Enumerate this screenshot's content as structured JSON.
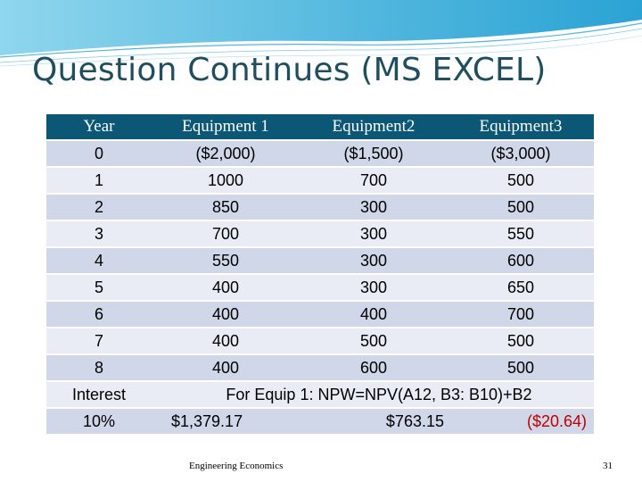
{
  "slide": {
    "title": "Question Continues (MS EXCEL)",
    "footer": "Engineering Economics",
    "page_number": "31"
  },
  "table": {
    "headers": [
      "Year",
      "Equipment 1",
      "Equipment2",
      "Equipment3"
    ],
    "rows": [
      [
        "0",
        "($2,000)",
        "($1,500)",
        "($3,000)"
      ],
      [
        "1",
        "1000",
        "700",
        "500"
      ],
      [
        "2",
        "850",
        "300",
        "500"
      ],
      [
        "3",
        "700",
        "300",
        "550"
      ],
      [
        "4",
        "550",
        "300",
        "600"
      ],
      [
        "5",
        "400",
        "300",
        "650"
      ],
      [
        "6",
        "400",
        "400",
        "700"
      ],
      [
        "7",
        "400",
        "500",
        "500"
      ],
      [
        "8",
        "400",
        "600",
        "500"
      ]
    ],
    "interest_label": "Interest",
    "interest_value": "10%",
    "formula": "For Equip 1: NPW=NPV(A12, B3: B10)+B2",
    "results": [
      "$1,379.17",
      "$763.15",
      "($20.64)"
    ]
  },
  "colors": {
    "header_bg": "#0b5775",
    "row_dark": "#cfd7e8",
    "row_light": "#e9ecf4",
    "title": "#1f4e5f",
    "wave": "#5bbfe0"
  }
}
